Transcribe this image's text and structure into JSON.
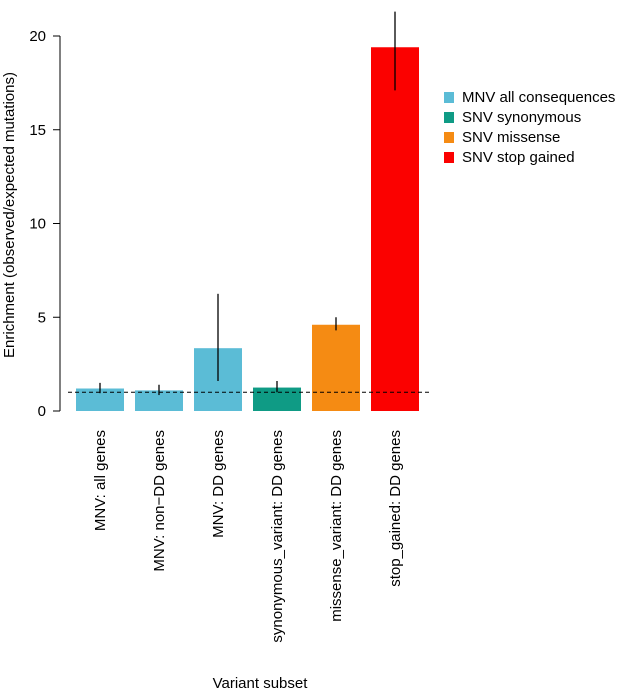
{
  "chart_data": {
    "type": "bar",
    "title": "",
    "xlabel": "Variant subset",
    "ylabel": "Enrichment (observed/expected mutations)",
    "ylim": [
      0,
      20
    ],
    "yticks": [
      0,
      5,
      10,
      15,
      20
    ],
    "reference_line": 1,
    "grid": false,
    "legend_position": "right",
    "categories": [
      "MNV: all genes",
      "MNV: non−DD genes",
      "MNV: DD genes",
      "synonymous_variant: DD genes",
      "missense_variant: DD genes",
      "stop_gained: DD genes"
    ],
    "values": [
      1.2,
      1.1,
      3.35,
      1.25,
      4.6,
      19.4
    ],
    "error_low": [
      0.95,
      0.85,
      1.6,
      1.0,
      4.3,
      17.1
    ],
    "error_high": [
      1.5,
      1.4,
      6.25,
      1.6,
      5.0,
      21.5
    ],
    "groups": [
      "MNV all consequences",
      "MNV all consequences",
      "MNV all consequences",
      "SNV synonymous",
      "SNV missense",
      "SNV stop gained"
    ],
    "legend": [
      {
        "label": "MNV all consequences",
        "color": "#5bbcd6"
      },
      {
        "label": "SNV synonymous",
        "color": "#0f9b85"
      },
      {
        "label": "SNV missense",
        "color": "#f58b13"
      },
      {
        "label": "SNV stop gained",
        "color": "#fb0100"
      }
    ]
  }
}
